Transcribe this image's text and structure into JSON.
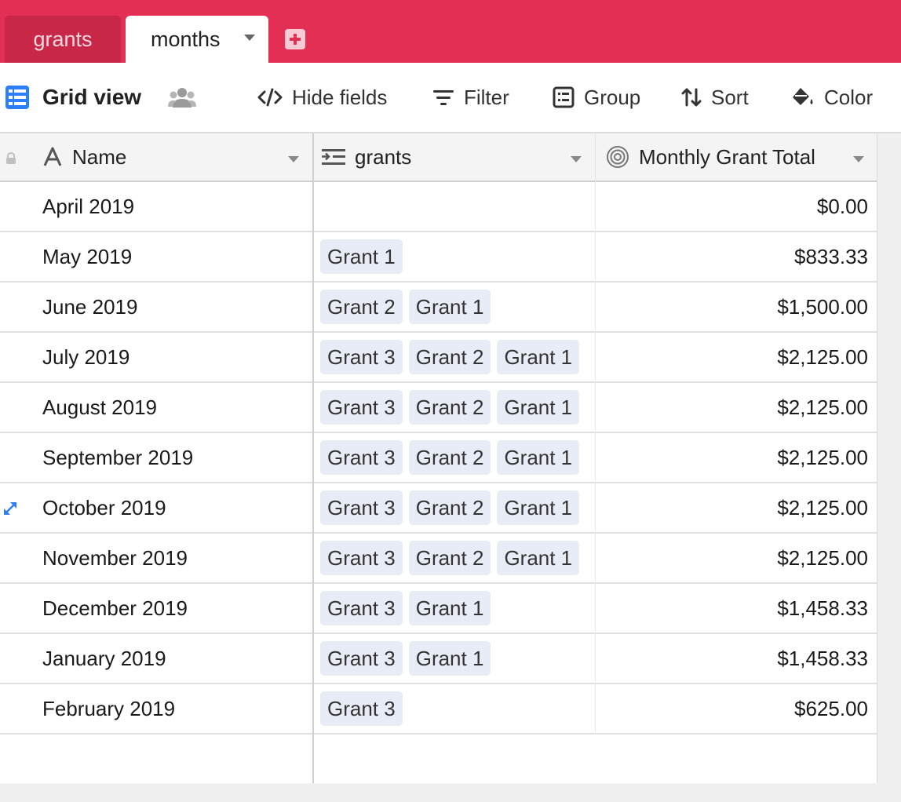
{
  "tabs": {
    "inactive_label": "grants",
    "active_label": "months"
  },
  "toolbar": {
    "view_label": "Grid view",
    "hide_fields": "Hide fields",
    "filter": "Filter",
    "group": "Group",
    "sort": "Sort",
    "color": "Color"
  },
  "columns": {
    "name": "Name",
    "grants": "grants",
    "total": "Monthly Grant Total"
  },
  "rows": [
    {
      "name": "April 2019",
      "grants": [],
      "total": "$0.00"
    },
    {
      "name": "May 2019",
      "grants": [
        "Grant 1"
      ],
      "total": "$833.33"
    },
    {
      "name": "June 2019",
      "grants": [
        "Grant 2",
        "Grant 1"
      ],
      "total": "$1,500.00"
    },
    {
      "name": "July 2019",
      "grants": [
        "Grant 3",
        "Grant 2",
        "Grant 1"
      ],
      "total": "$2,125.00"
    },
    {
      "name": "August 2019",
      "grants": [
        "Grant 3",
        "Grant 2",
        "Grant 1"
      ],
      "total": "$2,125.00"
    },
    {
      "name": "September 2019",
      "grants": [
        "Grant 3",
        "Grant 2",
        "Grant 1"
      ],
      "total": "$2,125.00"
    },
    {
      "name": "October 2019",
      "grants": [
        "Grant 3",
        "Grant 2",
        "Grant 1"
      ],
      "total": "$2,125.00"
    },
    {
      "name": "November 2019",
      "grants": [
        "Grant 3",
        "Grant 2",
        "Grant 1"
      ],
      "total": "$2,125.00"
    },
    {
      "name": "December 2019",
      "grants": [
        "Grant 3",
        "Grant 1"
      ],
      "total": "$1,458.33"
    },
    {
      "name": "January 2019",
      "grants": [
        "Grant 3",
        "Grant 1"
      ],
      "total": "$1,458.33"
    },
    {
      "name": "February 2019",
      "grants": [
        "Grant 3"
      ],
      "total": "$625.00"
    }
  ],
  "colors": {
    "tabbar": "#e22f53",
    "accent": "#2d7ff9",
    "chip": "#e8ecf6"
  }
}
